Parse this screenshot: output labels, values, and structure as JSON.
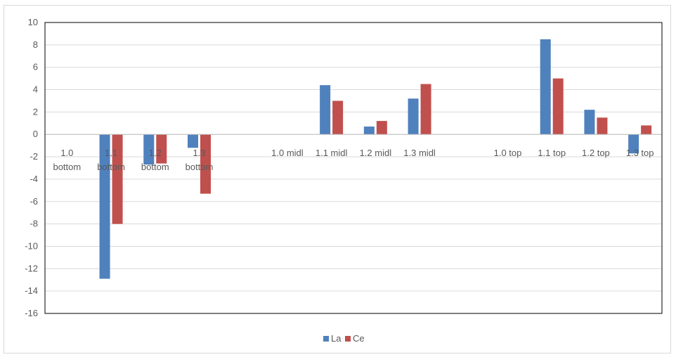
{
  "chart_data": {
    "type": "bar",
    "categories": [
      "1.0 bottom",
      "1.1 bottom",
      "1.2 bottom",
      "1.3 bottom",
      "",
      "1.0 midl",
      "1.1 midl",
      "1.2 midl",
      "1.3 midl",
      "",
      "1.0 top",
      "1.1 top",
      "1.2 top",
      "1.3 top"
    ],
    "category_lines": [
      [
        "1.0",
        "bottom"
      ],
      [
        "1.1",
        "bottom"
      ],
      [
        "1.2",
        "bottom"
      ],
      [
        "1.3",
        "bottom"
      ],
      [],
      [
        "1.0 midl"
      ],
      [
        "1.1 midl"
      ],
      [
        "1.2 midl"
      ],
      [
        "1.3 midl"
      ],
      [],
      [
        "1.0 top"
      ],
      [
        "1.1 top"
      ],
      [
        "1.2 top"
      ],
      [
        "1.3 top"
      ]
    ],
    "series": [
      {
        "name": "La",
        "color": "#4f81bd",
        "values": [
          0,
          -12.9,
          -2.7,
          -1.2,
          null,
          0,
          4.4,
          0.7,
          3.2,
          null,
          0,
          8.5,
          2.2,
          -1.7
        ]
      },
      {
        "name": "Ce",
        "color": "#c0504d",
        "values": [
          0,
          -8.0,
          -2.6,
          -5.3,
          null,
          0,
          3.0,
          1.2,
          4.5,
          null,
          0,
          5.0,
          1.5,
          0.8
        ]
      }
    ],
    "title": "",
    "xlabel": "",
    "ylabel": "",
    "ylim": [
      -16,
      10
    ],
    "yticks": [
      10,
      8,
      6,
      4,
      2,
      0,
      -2,
      -4,
      -6,
      -8,
      -10,
      -12,
      -14,
      -16
    ],
    "grid": true,
    "legend_position": "bottom-center"
  }
}
